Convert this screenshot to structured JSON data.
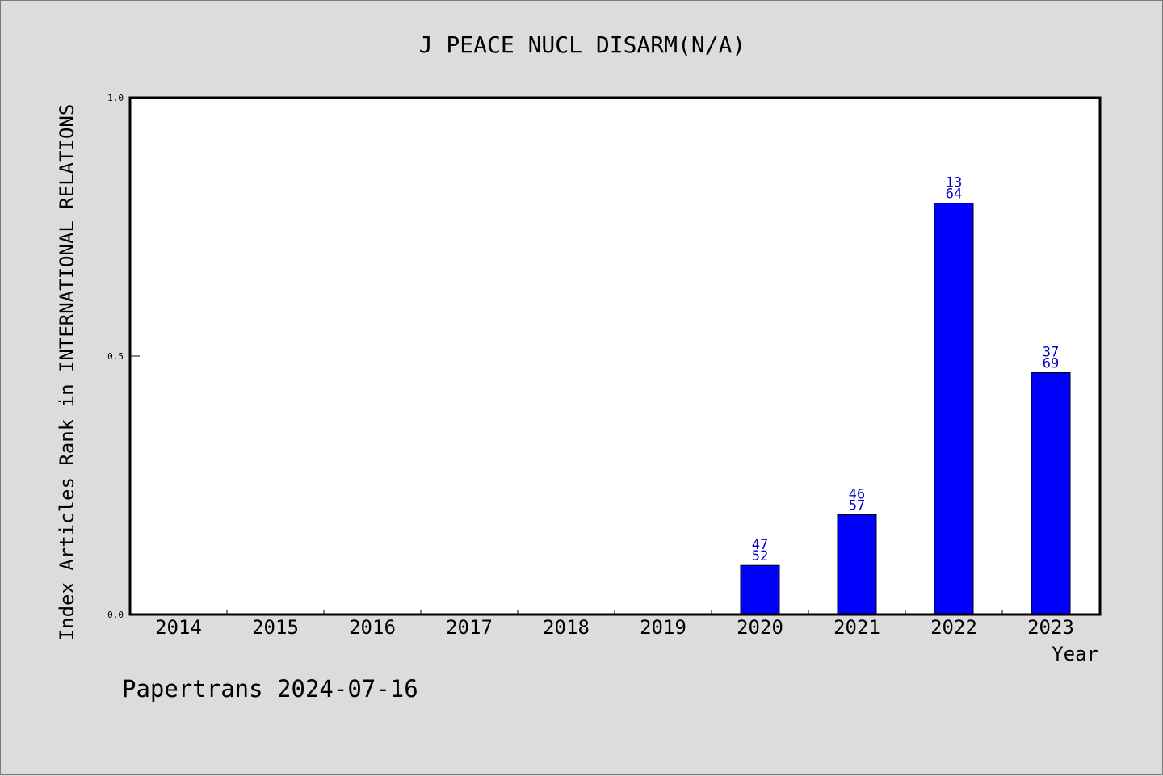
{
  "chart_data": {
    "type": "bar",
    "title": "J PEACE NUCL DISARM(N/A)",
    "xlabel": "Year",
    "ylabel": "Index Articles Rank in INTERNATIONAL RELATIONS",
    "categories": [
      "2014",
      "2015",
      "2016",
      "2017",
      "2018",
      "2019",
      "2020",
      "2021",
      "2022",
      "2023"
    ],
    "values": [
      0,
      0,
      0,
      0,
      0,
      0,
      0.095,
      0.193,
      0.796,
      0.468
    ],
    "data_labels": [
      null,
      null,
      null,
      null,
      null,
      null,
      {
        "top": "47",
        "bottom": "52"
      },
      {
        "top": "46",
        "bottom": "57"
      },
      {
        "top": "13",
        "bottom": "64"
      },
      {
        "top": "37",
        "bottom": "69"
      }
    ],
    "ylim": [
      0,
      1
    ],
    "yticks": [
      "0.0",
      "0.5",
      "1.0"
    ],
    "grid": false,
    "bar_color": "#0000ff",
    "label_color": "#0000cc"
  },
  "footer": "Papertrans 2024-07-16"
}
